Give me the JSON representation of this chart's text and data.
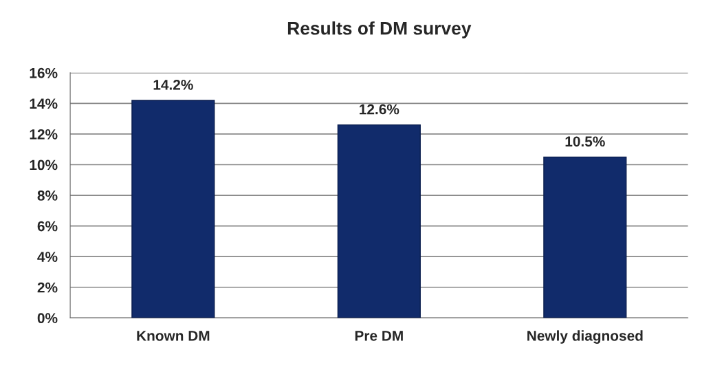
{
  "chart_data": {
    "type": "bar",
    "title": "Results of DM survey",
    "categories": [
      "Known DM",
      "Pre DM",
      "Newly diagnosed"
    ],
    "values": [
      14.2,
      12.6,
      10.5
    ],
    "value_labels": [
      "14.2%",
      "12.6%",
      "10.5%"
    ],
    "color": "#112b6b",
    "ylim": [
      0,
      16
    ],
    "yticks": [
      {
        "value": 0,
        "label": "0%"
      },
      {
        "value": 2,
        "label": "2%"
      },
      {
        "value": 4,
        "label": "4%"
      },
      {
        "value": 6,
        "label": "6%"
      },
      {
        "value": 8,
        "label": "8%"
      },
      {
        "value": 10,
        "label": "10%"
      },
      {
        "value": 12,
        "label": "12%"
      },
      {
        "value": 14,
        "label": "14%"
      },
      {
        "value": 16,
        "label": "16%"
      }
    ],
    "grid": "y"
  }
}
